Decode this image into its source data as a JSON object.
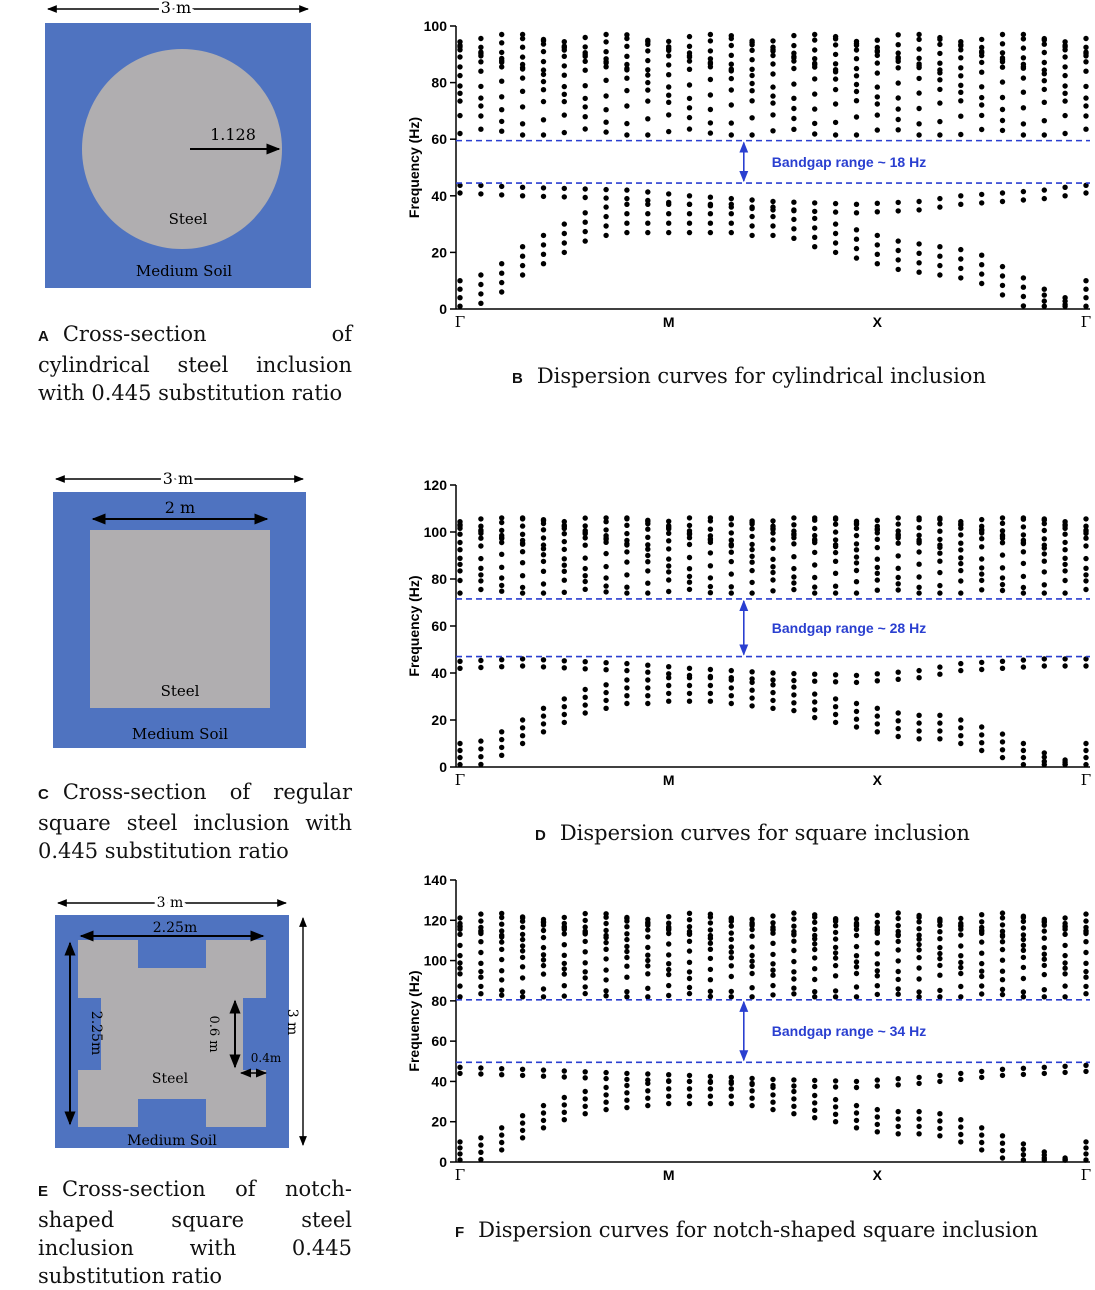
{
  "panels": {
    "A": {
      "letter": "A",
      "caption": "Cross-section of cylindrical steel inclusion with 0.445 substitution ratio",
      "width_label": "3 m",
      "radius_label": "1.128",
      "inclusion_label": "Steel",
      "matrix_label": "Medium Soil",
      "colors": {
        "soil": "#4f73c0",
        "steel": "#b0aeb0"
      }
    },
    "C": {
      "letter": "C",
      "caption": "Cross-section of regular square steel inclusion with 0.445 substitution ratio",
      "width_label": "3 m",
      "inner_label": "2 m",
      "inclusion_label": "Steel",
      "matrix_label": "Medium Soil",
      "colors": {
        "soil": "#4f73c0",
        "steel": "#b0aeb0"
      }
    },
    "E": {
      "letter": "E",
      "caption": "Cross-section of notch-shaped square steel inclusion with 0.445 substitution ratio",
      "width_label": "3 m",
      "inner_width_label": "2.25m",
      "inner_height_label": "2.25m",
      "height_label": "3 m",
      "notch_depth_label": "0.6 m",
      "notch_width_label": "0.4m",
      "inclusion_label": "Steel",
      "matrix_label": "Medium Soil",
      "colors": {
        "soil": "#4f73c0",
        "steel": "#b0aeb0"
      }
    },
    "B": {
      "letter": "B",
      "caption": "Dispersion curves for cylindrical inclusion"
    },
    "D": {
      "letter": "D",
      "caption": "Dispersion curves for square inclusion"
    },
    "F": {
      "letter": "F",
      "caption": "Dispersion curves for notch-shaped square inclusion"
    }
  },
  "chart_data": [
    {
      "id": "B",
      "type": "scatter",
      "ylabel": "Frequency (Hz)",
      "ylim": [
        0,
        100
      ],
      "yticks": [
        0,
        20,
        40,
        60,
        80,
        100
      ],
      "x_tick_labels": [
        "Γ",
        "M",
        "X",
        "Γ"
      ],
      "x_tick_positions": [
        0,
        1,
        2,
        3
      ],
      "k_points": 31,
      "xlim": [
        0,
        3
      ],
      "band_upper": 59.5,
      "band_lower": 44.5,
      "annotation": "Bandgap range ~ 18 Hz",
      "acoustic": {
        "points": [
          [
            0,
            0
          ],
          [
            1,
            12
          ],
          [
            2,
            16
          ],
          [
            3,
            22
          ],
          [
            4,
            26
          ],
          [
            5,
            30
          ],
          [
            6,
            34
          ],
          [
            7,
            36
          ],
          [
            8,
            37
          ],
          [
            9,
            37
          ],
          [
            10,
            37
          ],
          [
            11,
            37
          ],
          [
            12,
            37
          ],
          [
            13,
            37
          ],
          [
            14,
            36
          ],
          [
            15,
            36
          ],
          [
            16,
            35
          ],
          [
            17,
            32
          ],
          [
            18,
            30
          ],
          [
            19,
            28
          ],
          [
            20,
            26
          ],
          [
            21,
            24
          ],
          [
            22,
            23
          ],
          [
            23,
            22
          ],
          [
            24,
            21
          ],
          [
            25,
            19
          ],
          [
            26,
            15
          ],
          [
            27,
            11
          ],
          [
            28,
            7
          ],
          [
            29,
            4
          ],
          [
            30,
            0
          ]
        ],
        "spread": 10,
        "count": 4
      },
      "upper_branch": {
        "points": [
          [
            0,
            44
          ],
          [
            3,
            43
          ],
          [
            8,
            42
          ],
          [
            11,
            40
          ],
          [
            15,
            38
          ],
          [
            19,
            37
          ],
          [
            22,
            38
          ],
          [
            24,
            40
          ],
          [
            26,
            41
          ],
          [
            28,
            42
          ],
          [
            30,
            44
          ]
        ],
        "count": 2,
        "spread": 3
      },
      "bands_min": 61.5,
      "bands_max": 97,
      "optical_levels": [
        62,
        67,
        72,
        76,
        80,
        84,
        86,
        88,
        90,
        92,
        94,
        96
      ],
      "color": "#000000",
      "bandgap_color": "#2a3fd0"
    },
    {
      "id": "D",
      "type": "scatter",
      "ylabel": "Frequency (Hz)",
      "ylim": [
        0,
        120
      ],
      "yticks": [
        0,
        20,
        40,
        60,
        80,
        100,
        120
      ],
      "x_tick_labels": [
        "Γ",
        "M",
        "X",
        "Γ"
      ],
      "x_tick_positions": [
        0,
        1,
        2,
        3
      ],
      "k_points": 31,
      "xlim": [
        0,
        3
      ],
      "band_upper": 71.5,
      "band_lower": 47,
      "annotation": "Bandgap range ~ 28 Hz",
      "acoustic": {
        "points": [
          [
            0,
            0
          ],
          [
            1,
            11
          ],
          [
            2,
            15
          ],
          [
            3,
            20
          ],
          [
            4,
            25
          ],
          [
            5,
            29
          ],
          [
            6,
            33
          ],
          [
            7,
            35
          ],
          [
            8,
            37
          ],
          [
            9,
            37
          ],
          [
            10,
            38
          ],
          [
            11,
            38
          ],
          [
            12,
            38
          ],
          [
            13,
            37
          ],
          [
            14,
            36
          ],
          [
            15,
            35
          ],
          [
            16,
            34
          ],
          [
            17,
            31
          ],
          [
            18,
            29
          ],
          [
            19,
            27
          ],
          [
            20,
            25
          ],
          [
            21,
            23
          ],
          [
            22,
            22
          ],
          [
            23,
            22
          ],
          [
            24,
            20
          ],
          [
            25,
            17
          ],
          [
            26,
            14
          ],
          [
            27,
            10
          ],
          [
            28,
            6
          ],
          [
            29,
            3
          ],
          [
            30,
            0
          ]
        ],
        "spread": 10,
        "count": 4
      },
      "upper_branch": {
        "points": [
          [
            0,
            45
          ],
          [
            3,
            46
          ],
          [
            8,
            44
          ],
          [
            11,
            42
          ],
          [
            15,
            40
          ],
          [
            19,
            39
          ],
          [
            22,
            41
          ],
          [
            24,
            44
          ],
          [
            26,
            45
          ],
          [
            28,
            46
          ],
          [
            30,
            46
          ]
        ],
        "count": 2,
        "spread": 3
      },
      "bands_min": 74,
      "bands_max": 106,
      "optical_levels": [
        74,
        78,
        82,
        86,
        90,
        94,
        96,
        98,
        100,
        102,
        104,
        106
      ],
      "color": "#000000",
      "bandgap_color": "#2a3fd0"
    },
    {
      "id": "F",
      "type": "scatter",
      "ylabel": "Frequency (Hz)",
      "ylim": [
        0,
        140
      ],
      "yticks": [
        0,
        20,
        40,
        60,
        80,
        100,
        120,
        140
      ],
      "x_tick_labels": [
        "Γ",
        "M",
        "X",
        "Γ"
      ],
      "x_tick_positions": [
        0,
        1,
        2,
        3
      ],
      "k_points": 31,
      "xlim": [
        0,
        3
      ],
      "band_upper": 80.5,
      "band_lower": 49.5,
      "annotation": "Bandgap range ~ 34 Hz",
      "acoustic": {
        "points": [
          [
            0,
            0
          ],
          [
            1,
            12
          ],
          [
            2,
            17
          ],
          [
            3,
            23
          ],
          [
            4,
            28
          ],
          [
            5,
            32
          ],
          [
            6,
            35
          ],
          [
            7,
            37
          ],
          [
            8,
            38
          ],
          [
            9,
            39
          ],
          [
            10,
            40
          ],
          [
            11,
            40
          ],
          [
            12,
            40
          ],
          [
            13,
            40
          ],
          [
            14,
            39
          ],
          [
            15,
            37
          ],
          [
            16,
            35
          ],
          [
            17,
            33
          ],
          [
            18,
            31
          ],
          [
            19,
            28
          ],
          [
            20,
            26
          ],
          [
            21,
            25
          ],
          [
            22,
            25
          ],
          [
            23,
            24
          ],
          [
            24,
            21
          ],
          [
            25,
            17
          ],
          [
            26,
            13
          ],
          [
            27,
            9
          ],
          [
            28,
            5
          ],
          [
            29,
            2
          ],
          [
            30,
            0
          ]
        ],
        "spread": 11,
        "count": 4
      },
      "upper_branch": {
        "points": [
          [
            0,
            47
          ],
          [
            3,
            46
          ],
          [
            8,
            44
          ],
          [
            11,
            43
          ],
          [
            15,
            41
          ],
          [
            19,
            40
          ],
          [
            22,
            42
          ],
          [
            24,
            44
          ],
          [
            26,
            46
          ],
          [
            28,
            47
          ],
          [
            30,
            48
          ]
        ],
        "count": 2,
        "spread": 3
      },
      "bands_min": 82,
      "bands_max": 125,
      "optical_levels": [
        82,
        86,
        92,
        96,
        100,
        104,
        108,
        112,
        114,
        116,
        118,
        120,
        122
      ],
      "color": "#000000",
      "bandgap_color": "#2a3fd0"
    }
  ]
}
